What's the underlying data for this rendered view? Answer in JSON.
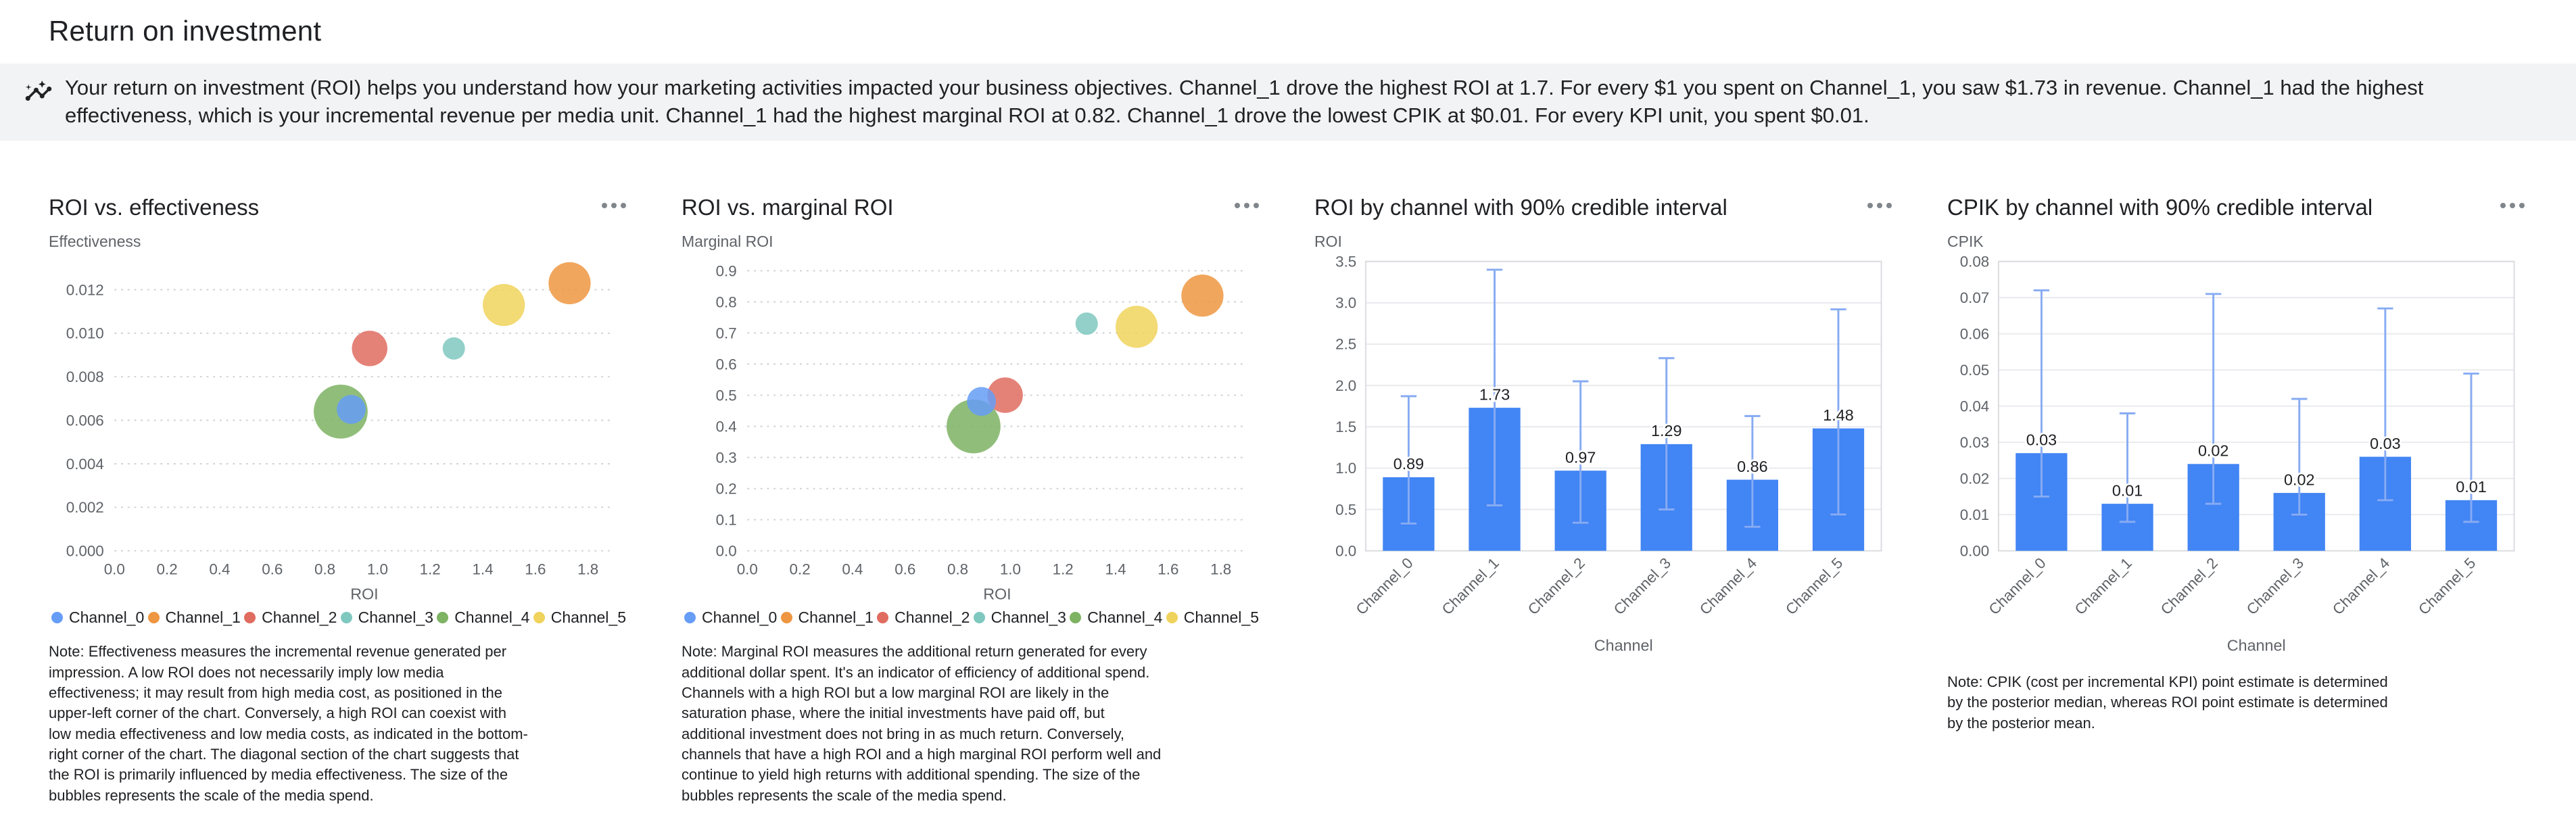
{
  "page": {
    "title": "Return on investment"
  },
  "insight_banner": {
    "icon": "insights-icon",
    "text": "Your return on investment (ROI) helps you understand how your marketing activities impacted your business objectives. Channel_1 drove the highest ROI at 1.7. For every $1 you spent on Channel_1, you saw $1.73 in revenue. Channel_1 had the highest effectiveness, which is your incremental revenue per media unit. Channel_1 had the highest marginal ROI at 0.82. Channel_1 drove the lowest CPIK at $0.01. For every KPI unit, you spent $0.01."
  },
  "icons": {
    "card_menu": "more-horiz-icon"
  },
  "colors": {
    "bar": "#4285F4",
    "credible_interval": "#87ABF3",
    "channels": [
      "#669DF6",
      "#EE9641",
      "#E06C60",
      "#7FC8C0",
      "#7DB363",
      "#F0D35C"
    ],
    "banner_background": "#F1F3F4"
  },
  "channels": [
    "Channel_0",
    "Channel_1",
    "Channel_2",
    "Channel_3",
    "Channel_4",
    "Channel_5"
  ],
  "chart_data": [
    {
      "type": "scatter",
      "title": "ROI vs. effectiveness",
      "xlabel": "ROI",
      "ylabel": "Effectiveness",
      "xlim": [
        0,
        1.9
      ],
      "ylim": [
        0,
        0.0133
      ],
      "xticks": [
        0,
        0.2,
        0.4,
        0.6,
        0.8,
        1,
        1.2,
        1.4,
        1.6,
        1.8
      ],
      "yticks": [
        0,
        0.002,
        0.004,
        0.006,
        0.008,
        0.01,
        0.012
      ],
      "xtick_decimals": 1,
      "ytick_decimals": 3,
      "grid": "dotted-horizontal",
      "legend_position": "bottom",
      "series": [
        {
          "name": "Channel_0",
          "x": 0.9,
          "y": 0.0065,
          "r": 22
        },
        {
          "name": "Channel_1",
          "x": 1.73,
          "y": 0.0123,
          "r": 32
        },
        {
          "name": "Channel_2",
          "x": 0.97,
          "y": 0.0093,
          "r": 27
        },
        {
          "name": "Channel_3",
          "x": 1.29,
          "y": 0.0093,
          "r": 17
        },
        {
          "name": "Channel_4",
          "x": 0.86,
          "y": 0.0064,
          "r": 41
        },
        {
          "name": "Channel_5",
          "x": 1.48,
          "y": 0.0113,
          "r": 32
        }
      ],
      "note": "Note: Effectiveness measures the incremental revenue generated per impression. A low ROI does not necessarily imply low media effectiveness; it may result from high media cost, as positioned in the upper-left corner of the chart. Conversely, a high ROI can coexist with low media effectiveness and low media costs, as indicated in the bottom-right corner of the chart. The diagonal section of the chart suggests that the ROI is primarily influenced by media effectiveness. The size of the bubbles represents the scale of the media spend."
    },
    {
      "type": "scatter",
      "title": "ROI vs. marginal ROI",
      "xlabel": "ROI",
      "ylabel": "Marginal ROI",
      "xlim": [
        0,
        1.9
      ],
      "ylim": [
        0,
        0.93
      ],
      "xticks": [
        0,
        0.2,
        0.4,
        0.6,
        0.8,
        1,
        1.2,
        1.4,
        1.6,
        1.8
      ],
      "yticks": [
        0,
        0.1,
        0.2,
        0.3,
        0.4,
        0.5,
        0.6,
        0.7,
        0.8,
        0.9
      ],
      "xtick_decimals": 1,
      "ytick_decimals": 1,
      "grid": "dotted-horizontal",
      "legend_position": "bottom",
      "series": [
        {
          "name": "Channel_0",
          "x": 0.89,
          "y": 0.48,
          "r": 22
        },
        {
          "name": "Channel_1",
          "x": 1.73,
          "y": 0.82,
          "r": 32
        },
        {
          "name": "Channel_2",
          "x": 0.98,
          "y": 0.5,
          "r": 27
        },
        {
          "name": "Channel_3",
          "x": 1.29,
          "y": 0.73,
          "r": 17
        },
        {
          "name": "Channel_4",
          "x": 0.86,
          "y": 0.4,
          "r": 41
        },
        {
          "name": "Channel_5",
          "x": 1.48,
          "y": 0.72,
          "r": 32
        }
      ],
      "note": "Note: Marginal ROI measures the additional return generated for every additional dollar spent. It's an indicator of efficiency of additional spend. Channels with a high ROI but a low marginal ROI are likely in the saturation phase, where the initial investments have paid off, but additional investment does not bring in as much return. Conversely, channels that have a high ROI and a high marginal ROI perform well and continue to yield high returns with additional spending. The size of the bubbles represents the scale of the media spend."
    },
    {
      "type": "bar",
      "title": "ROI by channel with 90% credible interval",
      "xlabel": "Channel",
      "ylabel": "ROI",
      "ylim": [
        0,
        3.5
      ],
      "yticks": [
        0,
        0.5,
        1,
        1.5,
        2,
        2.5,
        3,
        3.5
      ],
      "ytick_decimals": 1,
      "categories": [
        "Channel_0",
        "Channel_1",
        "Channel_2",
        "Channel_3",
        "Channel_4",
        "Channel_5"
      ],
      "values": [
        0.89,
        1.73,
        0.97,
        1.29,
        0.86,
        1.48
      ],
      "value_labels": [
        "0.89",
        "1.73",
        "0.97",
        "1.29",
        "0.86",
        "1.48"
      ],
      "ci_low": [
        0.33,
        0.55,
        0.34,
        0.5,
        0.29,
        0.44
      ],
      "ci_high": [
        1.87,
        3.4,
        2.05,
        2.33,
        1.63,
        2.92
      ]
    },
    {
      "type": "bar",
      "title": "CPIK by channel with 90% credible interval",
      "xlabel": "Channel",
      "ylabel": "CPIK",
      "ylim": [
        0,
        0.08
      ],
      "yticks": [
        0,
        0.01,
        0.02,
        0.03,
        0.04,
        0.05,
        0.06,
        0.07,
        0.08
      ],
      "ytick_decimals": 2,
      "categories": [
        "Channel_0",
        "Channel_1",
        "Channel_2",
        "Channel_3",
        "Channel_4",
        "Channel_5"
      ],
      "values": [
        0.027,
        0.013,
        0.024,
        0.016,
        0.026,
        0.014
      ],
      "value_labels": [
        "0.03",
        "0.01",
        "0.02",
        "0.02",
        "0.03",
        "0.01"
      ],
      "ci_low": [
        0.015,
        0.008,
        0.013,
        0.01,
        0.014,
        0.008
      ],
      "ci_high": [
        0.072,
        0.038,
        0.071,
        0.042,
        0.067,
        0.049
      ],
      "note": "Note: CPIK (cost per incremental KPI) point estimate is determined by the posterior median, whereas ROI point estimate is determined by the posterior mean."
    }
  ]
}
